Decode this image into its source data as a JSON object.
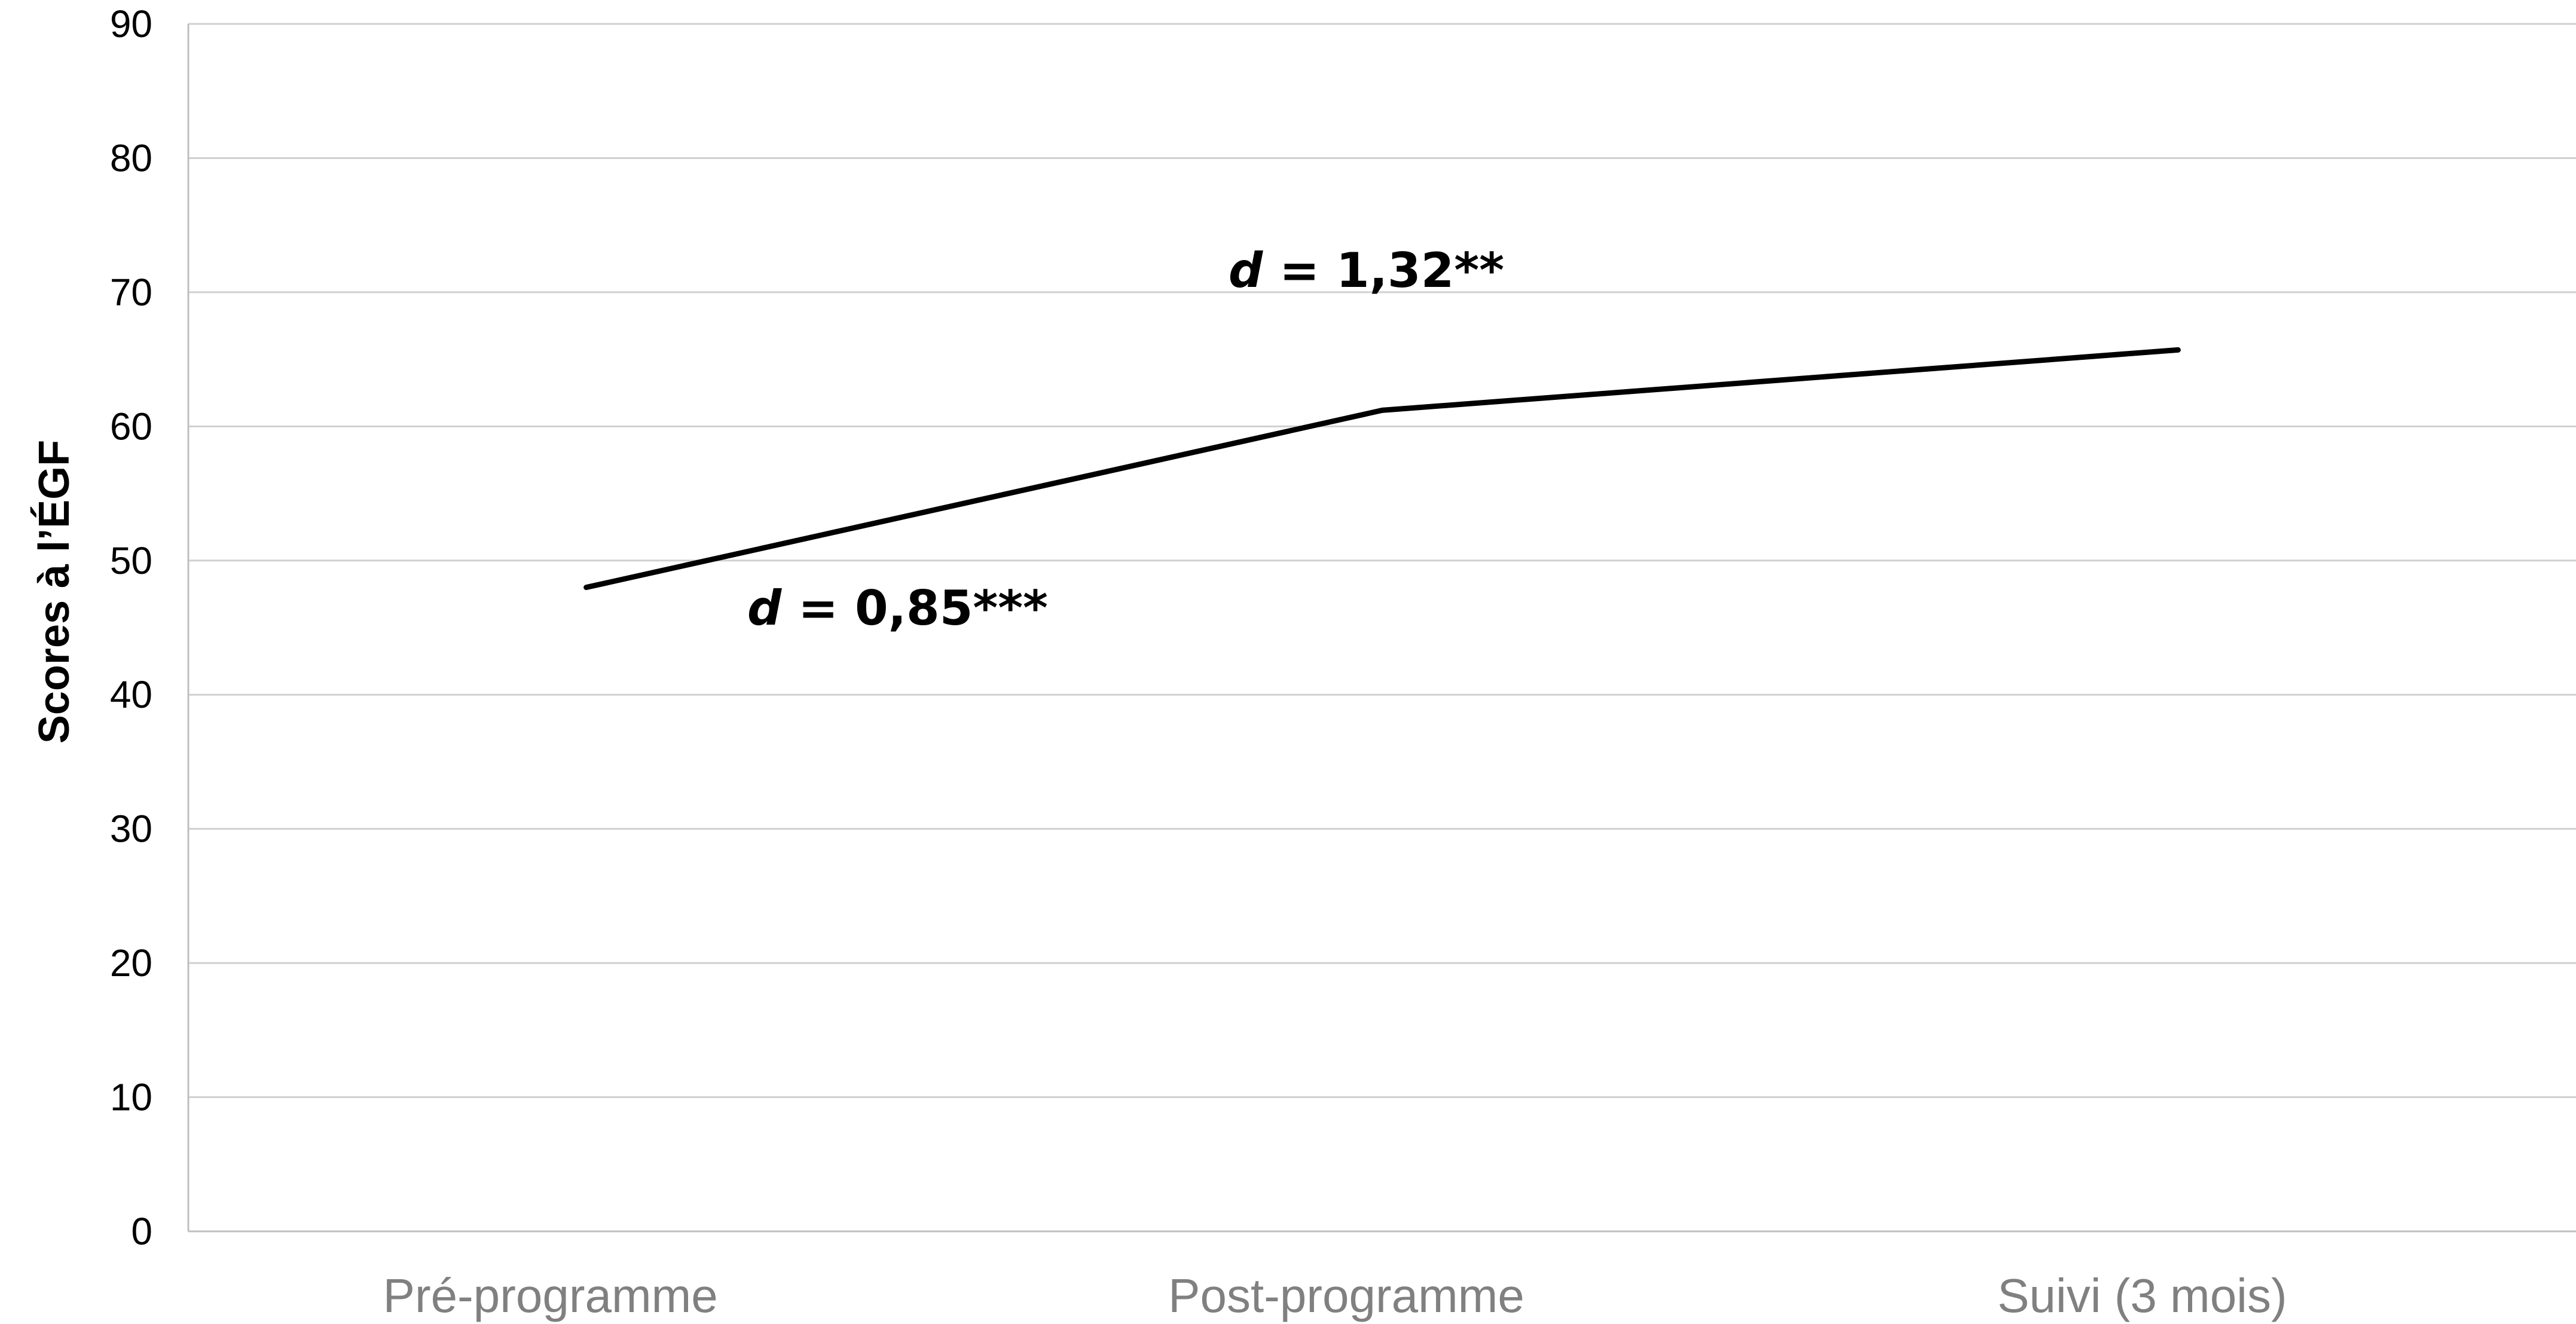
{
  "chart_data": {
    "type": "line",
    "title": "",
    "xlabel": "",
    "ylabel": "Scores  à l’ÉGF",
    "categories": [
      "Pré-programme",
      "Post-programme",
      "Suivi (3 mois)"
    ],
    "series": [
      {
        "values": [
          48,
          61.2,
          65.7
        ],
        "color": "#000000"
      }
    ],
    "ylim": [
      0,
      90
    ],
    "yticks": [
      0,
      10,
      20,
      30,
      40,
      50,
      60,
      70,
      80,
      90
    ],
    "grid": true,
    "legend": "none",
    "annotations": [
      {
        "symbol": "d",
        "text": " = 0,85***"
      },
      {
        "symbol": "d",
        "text": " = 1,32**"
      }
    ]
  }
}
